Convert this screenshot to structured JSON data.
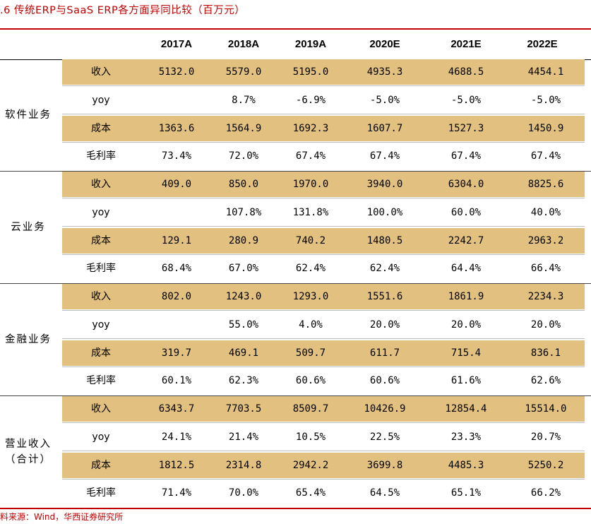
{
  "title": ".6 传统ERP与SaaS ERP各方面异同比较（百万元）",
  "columns": [
    "2017A",
    "2018A",
    "2019A",
    "2020E",
    "2021E",
    "2022E"
  ],
  "colors": {
    "accent": "#c00000",
    "shaded_row": "#e2c07f"
  },
  "groups": [
    {
      "label": "软件业务",
      "rows": [
        {
          "metric": "收入",
          "values": [
            "5132.0",
            "5579.0",
            "5195.0",
            "4935.3",
            "4688.5",
            "4454.1"
          ]
        },
        {
          "metric": "yoy",
          "values": [
            "",
            "8.7%",
            "-6.9%",
            "-5.0%",
            "-5.0%",
            "-5.0%"
          ]
        },
        {
          "metric": "成本",
          "values": [
            "1363.6",
            "1564.9",
            "1692.3",
            "1607.7",
            "1527.3",
            "1450.9"
          ]
        },
        {
          "metric": "毛利率",
          "values": [
            "73.4%",
            "72.0%",
            "67.4%",
            "67.4%",
            "67.4%",
            "67.4%"
          ]
        }
      ]
    },
    {
      "label": "云业务",
      "rows": [
        {
          "metric": "收入",
          "values": [
            "409.0",
            "850.0",
            "1970.0",
            "3940.0",
            "6304.0",
            "8825.6"
          ]
        },
        {
          "metric": "yoy",
          "values": [
            "",
            "107.8%",
            "131.8%",
            "100.0%",
            "60.0%",
            "40.0%"
          ]
        },
        {
          "metric": "成本",
          "values": [
            "129.1",
            "280.9",
            "740.2",
            "1480.5",
            "2242.7",
            "2963.2"
          ]
        },
        {
          "metric": "毛利率",
          "values": [
            "68.4%",
            "67.0%",
            "62.4%",
            "62.4%",
            "64.4%",
            "66.4%"
          ]
        }
      ]
    },
    {
      "label": "金融业务",
      "rows": [
        {
          "metric": "收入",
          "values": [
            "802.0",
            "1243.0",
            "1293.0",
            "1551.6",
            "1861.9",
            "2234.3"
          ]
        },
        {
          "metric": "yoy",
          "values": [
            "",
            "55.0%",
            "4.0%",
            "20.0%",
            "20.0%",
            "20.0%"
          ]
        },
        {
          "metric": "成本",
          "values": [
            "319.7",
            "469.1",
            "509.7",
            "611.7",
            "715.4",
            "836.1"
          ]
        },
        {
          "metric": "毛利率",
          "values": [
            "60.1%",
            "62.3%",
            "60.6%",
            "60.6%",
            "61.6%",
            "62.6%"
          ]
        }
      ]
    },
    {
      "label": "营业收入\n（合计）",
      "rows": [
        {
          "metric": "收入",
          "values": [
            "6343.7",
            "7703.5",
            "8509.7",
            "10426.9",
            "12854.4",
            "15514.0"
          ]
        },
        {
          "metric": "yoy",
          "values": [
            "24.1%",
            "21.4%",
            "10.5%",
            "22.5%",
            "23.3%",
            "20.7%"
          ]
        },
        {
          "metric": "成本",
          "values": [
            "1812.5",
            "2314.8",
            "2942.2",
            "3699.8",
            "4485.3",
            "5250.2"
          ]
        },
        {
          "metric": "毛利率",
          "values": [
            "71.4%",
            "70.0%",
            "65.4%",
            "64.5%",
            "65.1%",
            "66.2%"
          ]
        }
      ]
    }
  ],
  "source": "料来源：Wind，华西证券研究所"
}
